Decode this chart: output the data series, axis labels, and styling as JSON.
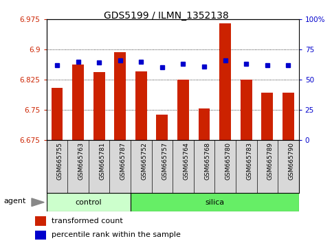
{
  "title": "GDS5199 / ILMN_1352138",
  "samples": [
    "GSM665755",
    "GSM665763",
    "GSM665781",
    "GSM665787",
    "GSM665752",
    "GSM665757",
    "GSM665764",
    "GSM665768",
    "GSM665780",
    "GSM665783",
    "GSM665789",
    "GSM665790"
  ],
  "groups": [
    "control",
    "control",
    "control",
    "control",
    "silica",
    "silica",
    "silica",
    "silica",
    "silica",
    "silica",
    "silica",
    "silica"
  ],
  "transformed_count": [
    6.805,
    6.862,
    6.843,
    6.893,
    6.845,
    6.738,
    6.825,
    6.753,
    6.965,
    6.825,
    6.793,
    6.793
  ],
  "percentile_rank": [
    62,
    65,
    64,
    66,
    65,
    60,
    63,
    61,
    66,
    63,
    62,
    62
  ],
  "ylim_left": [
    6.675,
    6.975
  ],
  "ylim_right": [
    0,
    100
  ],
  "yticks_left": [
    6.675,
    6.75,
    6.825,
    6.9,
    6.975
  ],
  "yticks_right": [
    0,
    25,
    50,
    75,
    100
  ],
  "ytick_labels_right": [
    "0",
    "25",
    "50",
    "75",
    "100%"
  ],
  "bar_color": "#cc2200",
  "dot_color": "#0000cc",
  "bar_baseline": 6.675,
  "control_color": "#ccffcc",
  "silica_color": "#66ee66",
  "agent_label": "agent",
  "legend_bar": "transformed count",
  "legend_dot": "percentile rank within the sample",
  "n_control": 4,
  "n_silica": 8
}
